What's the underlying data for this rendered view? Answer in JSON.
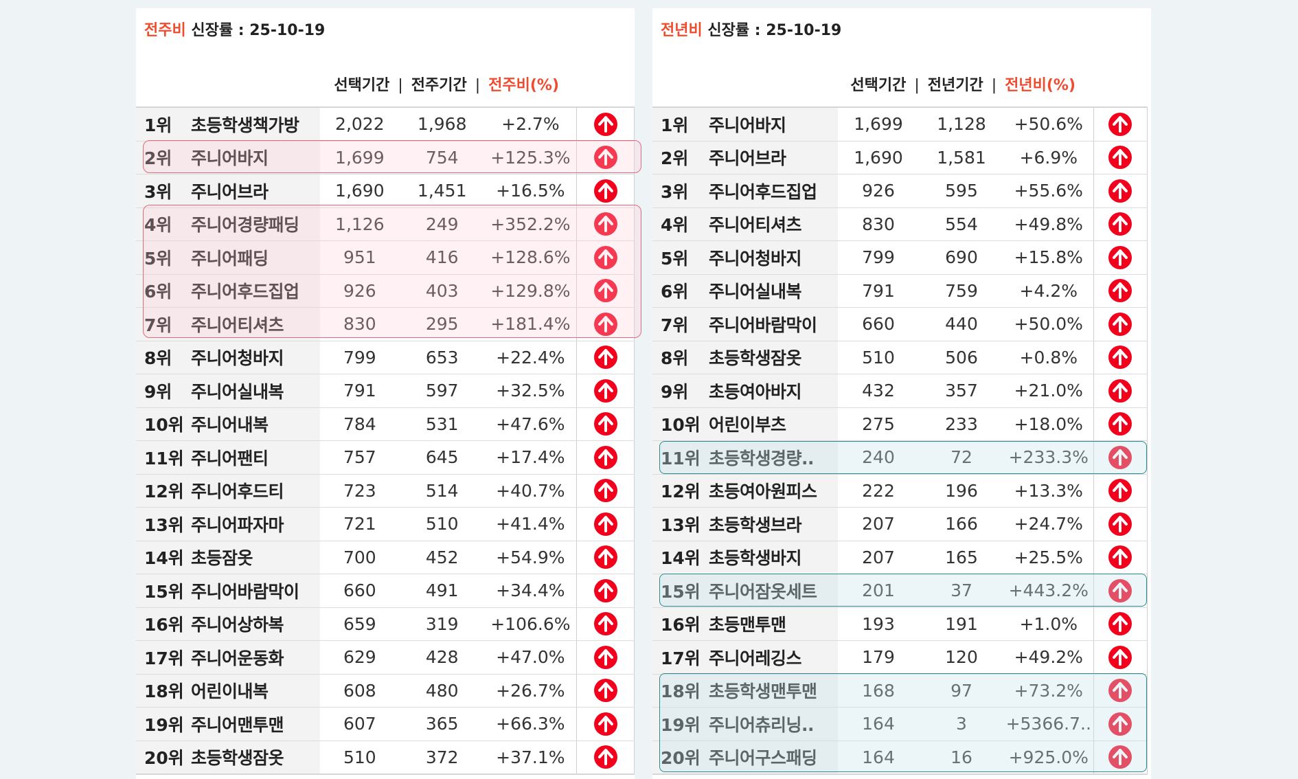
{
  "left": {
    "title_accent": "전주비",
    "title_rest": " 신장률 : 25-10-19",
    "col_selected": "선택기간",
    "col_compare": "전주기간",
    "col_ratio": "전주비(%)",
    "separator": "|",
    "rows": [
      {
        "rank": "1위",
        "name": "초등학생책가방",
        "sel": "2,022",
        "cmp": "1,968",
        "pct": "+2.7%",
        "icon": "arrow-up-circle-icon"
      },
      {
        "rank": "2위",
        "name": "주니어바지",
        "sel": "1,699",
        "cmp": "754",
        "pct": "+125.3%",
        "icon": "arrow-up-circle-icon"
      },
      {
        "rank": "3위",
        "name": "주니어브라",
        "sel": "1,690",
        "cmp": "1,451",
        "pct": "+16.5%",
        "icon": "arrow-up-circle-icon"
      },
      {
        "rank": "4위",
        "name": "주니어경량패딩",
        "sel": "1,126",
        "cmp": "249",
        "pct": "+352.2%",
        "icon": "arrow-up-circle-icon"
      },
      {
        "rank": "5위",
        "name": "주니어패딩",
        "sel": "951",
        "cmp": "416",
        "pct": "+128.6%",
        "icon": "arrow-up-circle-icon"
      },
      {
        "rank": "6위",
        "name": "주니어후드집업",
        "sel": "926",
        "cmp": "403",
        "pct": "+129.8%",
        "icon": "arrow-up-circle-icon"
      },
      {
        "rank": "7위",
        "name": "주니어티셔츠",
        "sel": "830",
        "cmp": "295",
        "pct": "+181.4%",
        "icon": "arrow-up-circle-icon"
      },
      {
        "rank": "8위",
        "name": "주니어청바지",
        "sel": "799",
        "cmp": "653",
        "pct": "+22.4%",
        "icon": "arrow-up-circle-icon"
      },
      {
        "rank": "9위",
        "name": "주니어실내복",
        "sel": "791",
        "cmp": "597",
        "pct": "+32.5%",
        "icon": "arrow-up-circle-icon"
      },
      {
        "rank": "10위",
        "name": "주니어내복",
        "sel": "784",
        "cmp": "531",
        "pct": "+47.6%",
        "icon": "arrow-up-circle-icon"
      },
      {
        "rank": "11위",
        "name": "주니어팬티",
        "sel": "757",
        "cmp": "645",
        "pct": "+17.4%",
        "icon": "arrow-up-circle-icon"
      },
      {
        "rank": "12위",
        "name": "주니어후드티",
        "sel": "723",
        "cmp": "514",
        "pct": "+40.7%",
        "icon": "arrow-up-circle-icon"
      },
      {
        "rank": "13위",
        "name": "주니어파자마",
        "sel": "721",
        "cmp": "510",
        "pct": "+41.4%",
        "icon": "arrow-up-circle-icon"
      },
      {
        "rank": "14위",
        "name": "초등잠옷",
        "sel": "700",
        "cmp": "452",
        "pct": "+54.9%",
        "icon": "arrow-up-circle-icon"
      },
      {
        "rank": "15위",
        "name": "주니어바람막이",
        "sel": "660",
        "cmp": "491",
        "pct": "+34.4%",
        "icon": "arrow-up-circle-icon"
      },
      {
        "rank": "16위",
        "name": "주니어상하복",
        "sel": "659",
        "cmp": "319",
        "pct": "+106.6%",
        "icon": "arrow-up-circle-icon"
      },
      {
        "rank": "17위",
        "name": "주니어운동화",
        "sel": "629",
        "cmp": "428",
        "pct": "+47.0%",
        "icon": "arrow-up-circle-icon"
      },
      {
        "rank": "18위",
        "name": "어린이내복",
        "sel": "608",
        "cmp": "480",
        "pct": "+26.7%",
        "icon": "arrow-up-circle-icon"
      },
      {
        "rank": "19위",
        "name": "주니어맨투맨",
        "sel": "607",
        "cmp": "365",
        "pct": "+66.3%",
        "icon": "arrow-up-circle-icon"
      },
      {
        "rank": "20위",
        "name": "초등학생잠옷",
        "sel": "510",
        "cmp": "372",
        "pct": "+37.1%",
        "icon": "arrow-up-circle-icon"
      }
    ]
  },
  "right": {
    "title_accent": "전년비",
    "title_rest": " 신장률 : 25-10-19",
    "col_selected": "선택기간",
    "col_compare": "전년기간",
    "col_ratio": "전년비(%)",
    "separator": "|",
    "rows": [
      {
        "rank": "1위",
        "name": "주니어바지",
        "sel": "1,699",
        "cmp": "1,128",
        "pct": "+50.6%",
        "icon": "arrow-up-circle-icon"
      },
      {
        "rank": "2위",
        "name": "주니어브라",
        "sel": "1,690",
        "cmp": "1,581",
        "pct": "+6.9%",
        "icon": "arrow-up-circle-icon"
      },
      {
        "rank": "3위",
        "name": "주니어후드집업",
        "sel": "926",
        "cmp": "595",
        "pct": "+55.6%",
        "icon": "arrow-up-circle-icon"
      },
      {
        "rank": "4위",
        "name": "주니어티셔츠",
        "sel": "830",
        "cmp": "554",
        "pct": "+49.8%",
        "icon": "arrow-up-circle-icon"
      },
      {
        "rank": "5위",
        "name": "주니어청바지",
        "sel": "799",
        "cmp": "690",
        "pct": "+15.8%",
        "icon": "arrow-up-circle-icon"
      },
      {
        "rank": "6위",
        "name": "주니어실내복",
        "sel": "791",
        "cmp": "759",
        "pct": "+4.2%",
        "icon": "arrow-up-circle-icon"
      },
      {
        "rank": "7위",
        "name": "주니어바람막이",
        "sel": "660",
        "cmp": "440",
        "pct": "+50.0%",
        "icon": "arrow-up-circle-icon"
      },
      {
        "rank": "8위",
        "name": "초등학생잠옷",
        "sel": "510",
        "cmp": "506",
        "pct": "+0.8%",
        "icon": "arrow-up-circle-icon"
      },
      {
        "rank": "9위",
        "name": "초등여아바지",
        "sel": "432",
        "cmp": "357",
        "pct": "+21.0%",
        "icon": "arrow-up-circle-icon"
      },
      {
        "rank": "10위",
        "name": "어린이부츠",
        "sel": "275",
        "cmp": "233",
        "pct": "+18.0%",
        "icon": "arrow-up-circle-icon"
      },
      {
        "rank": "11위",
        "name": "초등학생경량..",
        "sel": "240",
        "cmp": "72",
        "pct": "+233.3%",
        "icon": "arrow-up-circle-icon"
      },
      {
        "rank": "12위",
        "name": "초등여아원피스",
        "sel": "222",
        "cmp": "196",
        "pct": "+13.3%",
        "icon": "arrow-up-circle-icon"
      },
      {
        "rank": "13위",
        "name": "초등학생브라",
        "sel": "207",
        "cmp": "166",
        "pct": "+24.7%",
        "icon": "arrow-up-circle-icon"
      },
      {
        "rank": "14위",
        "name": "초등학생바지",
        "sel": "207",
        "cmp": "165",
        "pct": "+25.5%",
        "icon": "arrow-up-circle-icon"
      },
      {
        "rank": "15위",
        "name": "주니어잠옷세트",
        "sel": "201",
        "cmp": "37",
        "pct": "+443.2%",
        "icon": "arrow-up-circle-icon"
      },
      {
        "rank": "16위",
        "name": "초등맨투맨",
        "sel": "193",
        "cmp": "191",
        "pct": "+1.0%",
        "icon": "arrow-up-circle-icon"
      },
      {
        "rank": "17위",
        "name": "주니어레깅스",
        "sel": "179",
        "cmp": "120",
        "pct": "+49.2%",
        "icon": "arrow-up-circle-icon"
      },
      {
        "rank": "18위",
        "name": "초등학생맨투맨",
        "sel": "168",
        "cmp": "97",
        "pct": "+73.2%",
        "icon": "arrow-up-circle-icon"
      },
      {
        "rank": "19위",
        "name": "주니어츄리닝..",
        "sel": "164",
        "cmp": "3",
        "pct": "+5366.7..",
        "icon": "arrow-up-circle-icon"
      },
      {
        "rank": "20위",
        "name": "주니어구스패딩",
        "sel": "164",
        "cmp": "16",
        "pct": "+925.0%",
        "icon": "arrow-up-circle-icon"
      }
    ]
  },
  "colors": {
    "accent": "#ef4b2f",
    "up_icon": "#f2001c",
    "highlight_red": "#e06a7a",
    "highlight_teal": "#2d8a8c"
  }
}
